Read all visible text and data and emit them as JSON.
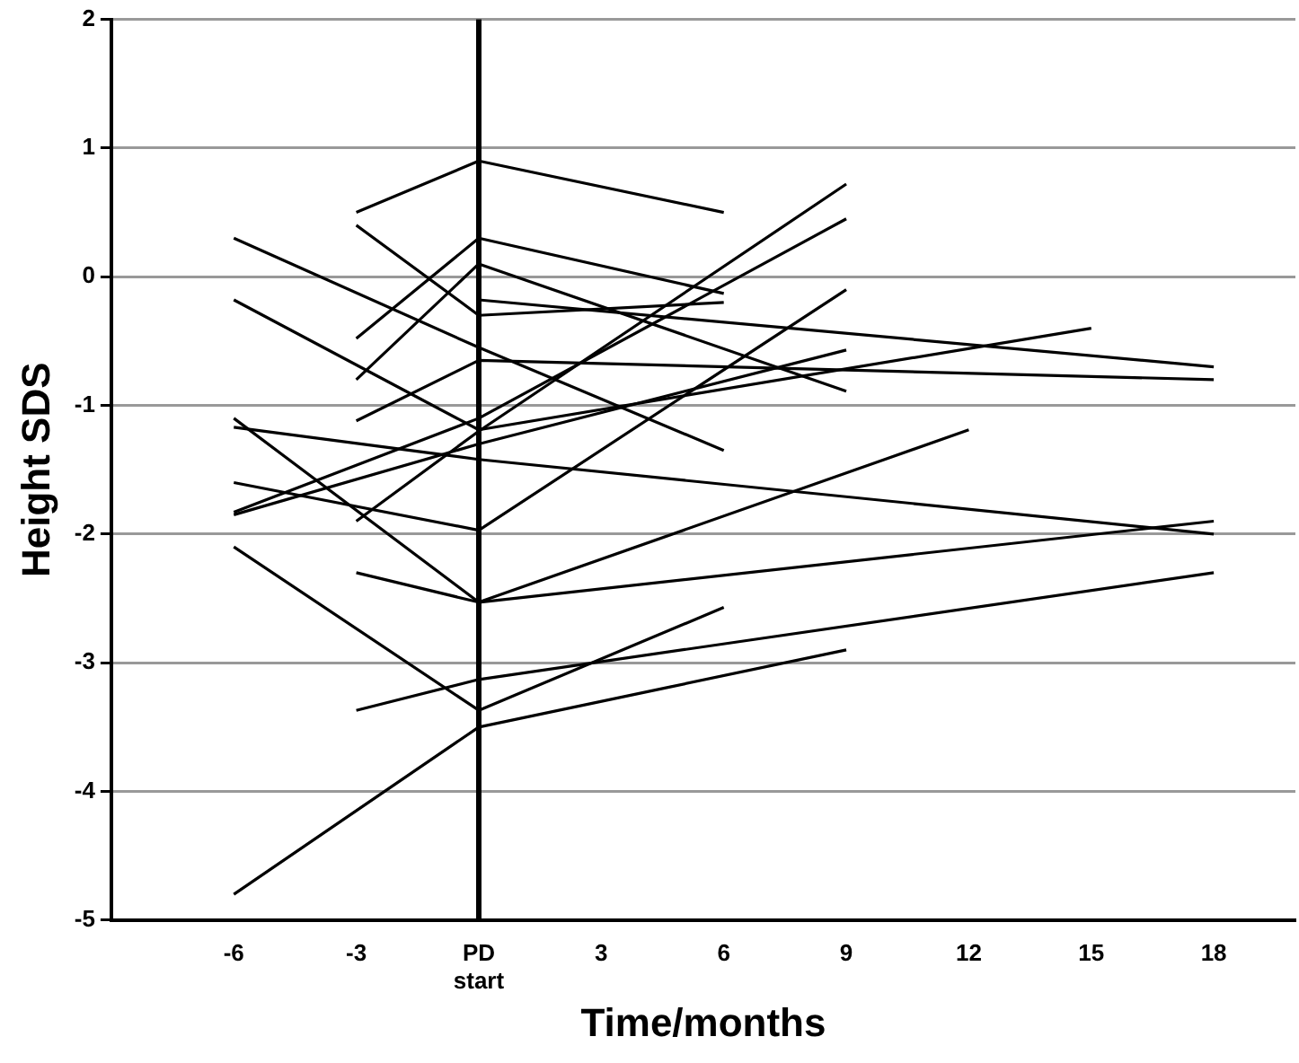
{
  "chart_data": {
    "type": "line",
    "xlabel": "Time/months",
    "ylabel": "Height SDS",
    "xlim": [
      -9,
      20
    ],
    "xticks": [
      -6,
      -3,
      {
        "value": 0,
        "label": "PD start"
      },
      3,
      6,
      9,
      12,
      15,
      18
    ],
    "ylim": [
      -5,
      2
    ],
    "yticks": [
      -5,
      -4,
      -3,
      -2,
      -1,
      0,
      1,
      2
    ],
    "grid": "y",
    "legend": false,
    "marker": "none",
    "line_style": "solid",
    "ref_lines": [
      {
        "axis": "x",
        "value": 0,
        "color": "#000000"
      }
    ],
    "series": [
      {
        "color": "#000000",
        "x": [
          -3,
          0,
          6
        ],
        "values": [
          0.5,
          0.9,
          0.5
        ]
      },
      {
        "color": "#000000",
        "x": [
          -6,
          0,
          9
        ],
        "values": [
          -4.8,
          -3.5,
          -2.9
        ]
      },
      {
        "color": "#000000",
        "x": [
          -6,
          0,
          6
        ],
        "values": [
          -2.1,
          -3.37,
          -2.57
        ]
      },
      {
        "color": "#000000",
        "x": [
          -3,
          0,
          18
        ],
        "values": [
          -3.37,
          -3.13,
          -2.3
        ]
      },
      {
        "color": "#000000",
        "x": [
          -3,
          0,
          18
        ],
        "values": [
          -2.3,
          -2.53,
          -1.9
        ]
      },
      {
        "color": "#000000",
        "x": [
          -6,
          0,
          12
        ],
        "values": [
          -1.1,
          -2.53,
          -1.19
        ]
      },
      {
        "color": "#000000",
        "x": [
          -6,
          0,
          18
        ],
        "values": [
          -1.17,
          -1.42,
          -2.0
        ]
      },
      {
        "color": "#000000",
        "x": [
          -6,
          0,
          9
        ],
        "values": [
          -1.6,
          -1.97,
          -0.1
        ]
      },
      {
        "color": "#000000",
        "x": [
          -3,
          0,
          9
        ],
        "values": [
          -1.9,
          -1.2,
          0.72
        ]
      },
      {
        "color": "#000000",
        "x": [
          -6,
          0,
          9
        ],
        "values": [
          -1.83,
          -1.1,
          0.45
        ]
      },
      {
        "color": "#000000",
        "x": [
          -6,
          0,
          9
        ],
        "values": [
          -1.85,
          -1.3,
          -0.57
        ]
      },
      {
        "color": "#000000",
        "x": [
          -6,
          0,
          6
        ],
        "values": [
          0.3,
          -0.55,
          -1.35
        ]
      },
      {
        "color": "#000000",
        "x": [
          -6,
          0,
          15
        ],
        "values": [
          -0.18,
          -1.19,
          -0.4
        ]
      },
      {
        "color": "#000000",
        "x": [
          -3,
          0,
          6
        ],
        "values": [
          0.4,
          -0.3,
          -0.2
        ]
      },
      {
        "color": "#000000",
        "x": [
          -3,
          0,
          6
        ],
        "values": [
          -0.48,
          0.3,
          -0.13
        ]
      },
      {
        "color": "#000000",
        "x": [
          -3,
          0,
          9
        ],
        "values": [
          -0.8,
          0.1,
          -0.89
        ]
      },
      {
        "color": "#000000",
        "x": [
          -3,
          0,
          18
        ],
        "values": [
          -1.12,
          -0.65,
          -0.8
        ]
      },
      {
        "color": "#000000",
        "x": [
          0,
          18
        ],
        "values": [
          -0.18,
          -0.7
        ]
      }
    ]
  }
}
